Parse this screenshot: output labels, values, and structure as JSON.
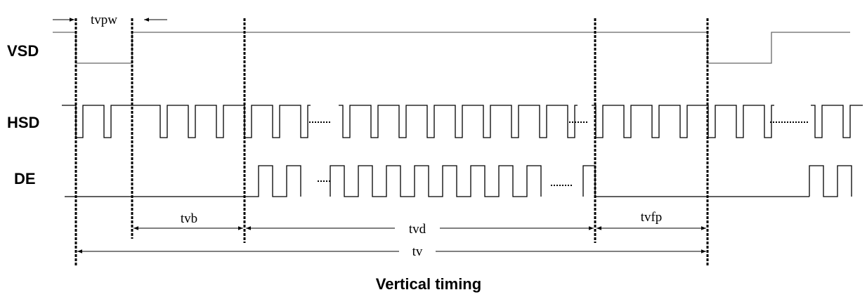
{
  "signals": {
    "vsd": "VSD",
    "hsd": "HSD",
    "de": "DE"
  },
  "intervals": {
    "tvpw": "tvpw",
    "tvb": "tvb",
    "tvd": "tvd",
    "tvfp": "tvfp",
    "tv": "tv"
  },
  "caption": "Vertical timing"
}
